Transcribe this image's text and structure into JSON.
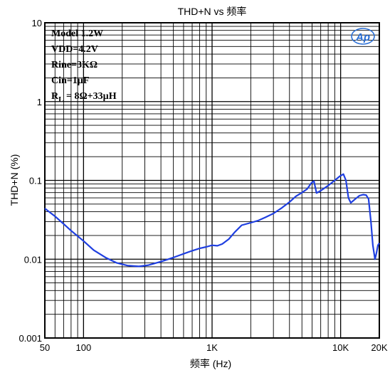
{
  "chart_data": {
    "type": "line",
    "title": "THD+N vs 频率",
    "xlabel": "频率 (Hz)",
    "ylabel": "THD+N (%)",
    "x_scale": "log",
    "y_scale": "log",
    "xlim": [
      50,
      20000
    ],
    "ylim": [
      0.001,
      10
    ],
    "grid": true,
    "x_tick_labels": [
      {
        "value": 50,
        "label": "50"
      },
      {
        "value": 100,
        "label": "100"
      },
      {
        "value": 1000,
        "label": "1K"
      },
      {
        "value": 10000,
        "label": "10K"
      },
      {
        "value": 20000,
        "label": "20K"
      }
    ],
    "y_tick_labels": [
      {
        "value": 10,
        "label": "10"
      },
      {
        "value": 1,
        "label": "1"
      },
      {
        "value": 0.1,
        "label": "0.1"
      },
      {
        "value": 0.01,
        "label": "0.01"
      },
      {
        "value": 0.001,
        "label": "0.001"
      }
    ],
    "annotations": [
      "Model 1.2W",
      "VDD=4.2V",
      "Rine=3KΩ",
      "Cin=1µF"
    ],
    "annotation_rl": {
      "main": "R",
      "sub": "L",
      "rest": " = 8Ω+33µH"
    },
    "logo_text": "Ap",
    "series_color": "#1f3fe0",
    "series": [
      {
        "x": [
          50,
          60,
          70,
          80,
          100,
          120,
          150,
          180,
          220,
          270,
          320,
          400,
          500,
          600,
          700,
          800,
          900,
          1000,
          1100,
          1200,
          1350,
          1500,
          1700,
          2000,
          2300,
          2600,
          3000,
          3500,
          4000,
          4500,
          5000,
          5500,
          5900,
          6200,
          6500,
          7000,
          8000,
          9000,
          9800,
          10500,
          11000,
          11500,
          12000,
          13000,
          14000,
          15000,
          15800,
          16500,
          17200,
          17800,
          18500,
          19000,
          19500,
          20000
        ],
        "y": [
          0.044,
          0.035,
          0.028,
          0.023,
          0.017,
          0.013,
          0.0104,
          0.009,
          0.0083,
          0.0081,
          0.0084,
          0.0093,
          0.0105,
          0.0117,
          0.0128,
          0.0137,
          0.0143,
          0.015,
          0.0148,
          0.0156,
          0.018,
          0.022,
          0.027,
          0.029,
          0.031,
          0.034,
          0.038,
          0.045,
          0.053,
          0.063,
          0.07,
          0.078,
          0.092,
          0.098,
          0.069,
          0.074,
          0.086,
          0.1,
          0.112,
          0.12,
          0.1,
          0.06,
          0.052,
          0.058,
          0.064,
          0.066,
          0.065,
          0.058,
          0.03,
          0.015,
          0.01,
          0.012,
          0.015,
          0.016
        ]
      }
    ]
  }
}
